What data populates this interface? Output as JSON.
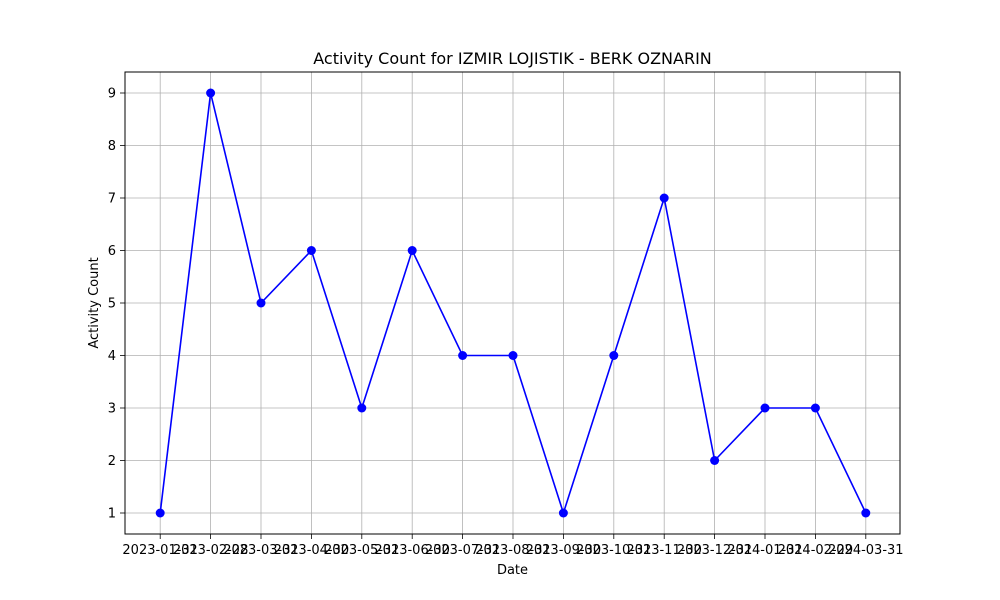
{
  "chart_data": {
    "type": "line",
    "title": "Activity Count for IZMIR LOJISTIK - BERK OZNARIN",
    "xlabel": "Date",
    "ylabel": "Activity Count",
    "x": [
      "2023-01-31",
      "2023-02-28",
      "2023-03-31",
      "2023-04-30",
      "2023-05-31",
      "2023-06-30",
      "2023-07-31",
      "2023-08-31",
      "2023-09-30",
      "2023-10-31",
      "2023-11-30",
      "2023-12-31",
      "2024-01-31",
      "2024-02-29",
      "2024-03-31"
    ],
    "series": [
      {
        "values": [
          1,
          9,
          5,
          6,
          3,
          6,
          4,
          4,
          1,
          4,
          7,
          2,
          3,
          3,
          1
        ],
        "color": "#0000ff"
      }
    ],
    "yticks": [
      1,
      2,
      3,
      4,
      5,
      6,
      7,
      8,
      9
    ],
    "ylim": [
      0.6,
      9.4
    ],
    "grid": true,
    "marker": "circle"
  }
}
